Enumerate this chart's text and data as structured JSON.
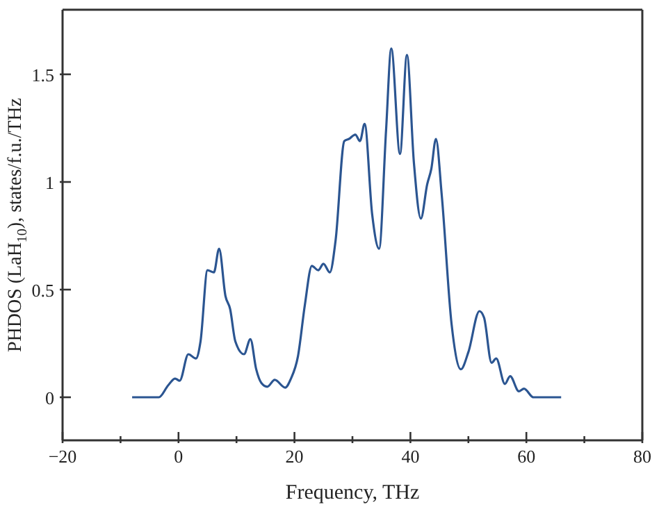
{
  "chart_data": {
    "type": "line",
    "xlabel": "Frequency, THz",
    "ylabel": "PHDOS (LaH$_{10}$), states/f.u./THz",
    "x": [
      -8,
      -3.4,
      -1.8,
      -0.6,
      0.2,
      1.7,
      3.0,
      3.8,
      5.0,
      6.1,
      7.0,
      8.1,
      8.9,
      9.8,
      11.3,
      12.4,
      13.4,
      14.3,
      15.3,
      16.6,
      18.4,
      19.4,
      20.6,
      21.8,
      23.0,
      24.1,
      25.0,
      26.1,
      27.1,
      28.6,
      29.4,
      30.5,
      31.3,
      32.1,
      33.4,
      34.6,
      35.8,
      36.7,
      38.2,
      39.4,
      40.6,
      41.8,
      42.9,
      43.6,
      44.4,
      45.4,
      47.1,
      48.7,
      50.0,
      51.9,
      52.7,
      54.0,
      54.8,
      56.3,
      57.2,
      58.7,
      59.6,
      61.2,
      66
    ],
    "series": [
      {
        "color": "#2b5591",
        "values": [
          0,
          0,
          0.055,
          0.087,
          0.077,
          0.2,
          0.18,
          0.26,
          0.59,
          0.58,
          0.69,
          0.47,
          0.41,
          0.26,
          0.2,
          0.27,
          0.13,
          0.066,
          0.049,
          0.081,
          0.045,
          0.087,
          0.19,
          0.43,
          0.61,
          0.59,
          0.62,
          0.58,
          0.73,
          1.19,
          1.2,
          1.22,
          1.19,
          1.27,
          0.85,
          0.69,
          1.24,
          1.62,
          1.13,
          1.59,
          1.09,
          0.83,
          0.99,
          1.06,
          1.2,
          0.94,
          0.34,
          0.13,
          0.21,
          0.4,
          0.37,
          0.16,
          0.18,
          0.062,
          0.098,
          0.028,
          0.04,
          0,
          0
        ]
      }
    ],
    "xlim": [
      -20,
      80
    ],
    "xticks": [
      {
        "value": -20,
        "label": "−20"
      },
      {
        "value": -10,
        "label": null
      },
      0,
      {
        "value": 10,
        "label": null
      },
      20,
      {
        "value": 30,
        "label": null
      },
      40,
      {
        "value": 50,
        "label": null
      },
      60,
      {
        "value": 70,
        "label": null
      },
      80
    ],
    "ylim": [
      -0.2,
      1.8
    ],
    "yticks": [
      0,
      0.5,
      1,
      1.5
    ],
    "grid": false,
    "legend": false,
    "marker": "none",
    "line_style": "solid"
  }
}
